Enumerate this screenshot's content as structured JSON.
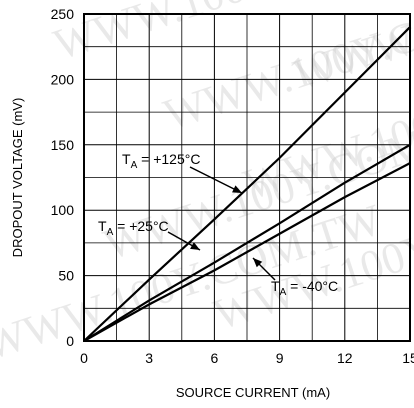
{
  "chart_data": {
    "type": "line",
    "xlabel": "SOURCE CURRENT (mA)",
    "ylabel": "DROPOUT VOLTAGE (mV)",
    "xlim": [
      0,
      15
    ],
    "ylim": [
      0,
      250
    ],
    "xticks": [
      0,
      3,
      6,
      9,
      12,
      15
    ],
    "yticks": [
      0,
      50,
      100,
      150,
      200,
      250
    ],
    "grid": true,
    "series": [
      {
        "name": "+125°C",
        "x": [
          0,
          3,
          6,
          9,
          12,
          15
        ],
        "y": [
          0,
          47,
          93,
          140,
          190,
          240
        ]
      },
      {
        "name": "+25°C",
        "x": [
          0,
          3,
          6,
          9,
          12,
          15
        ],
        "y": [
          0,
          31,
          60,
          90,
          121,
          150
        ]
      },
      {
        "name": "-40°C",
        "x": [
          0,
          3,
          6,
          9,
          12,
          15
        ],
        "y": [
          0,
          28,
          54,
          82,
          110,
          136
        ]
      }
    ],
    "annotations": [
      {
        "main": "T",
        "sub": "A",
        "rest": " = +125°C"
      },
      {
        "main": "T",
        "sub": "A",
        "rest": " = +25°C"
      },
      {
        "main": "T",
        "sub": "A",
        "rest": " = -40°C"
      }
    ]
  },
  "watermark": "WWW.100Y.COM.TW"
}
